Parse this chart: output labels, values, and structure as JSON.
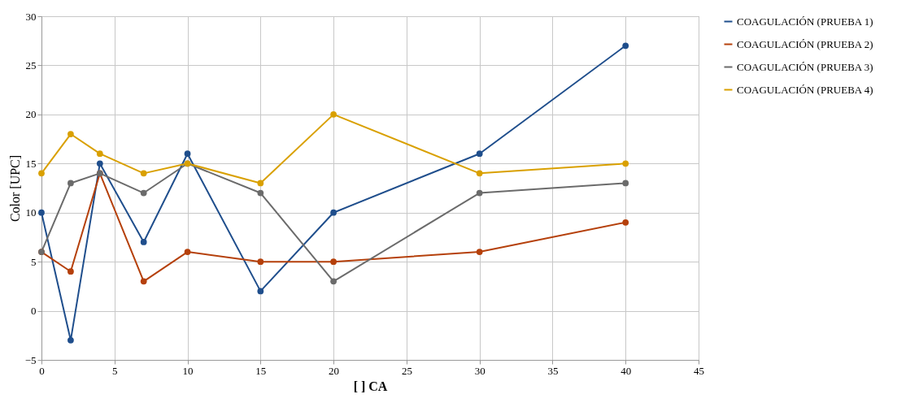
{
  "chart_data": {
    "type": "line",
    "xlabel": "[ ] CA",
    "ylabel": "Color [UPC]",
    "x": [
      0,
      2,
      4,
      7,
      10,
      15,
      20,
      30,
      40
    ],
    "series": [
      {
        "name": "COAGULACIÓN (PRUEBA 1)",
        "color": "#1f4e8c",
        "values": [
          10,
          -3,
          15,
          7,
          16,
          2,
          10,
          16,
          27
        ]
      },
      {
        "name": "COAGULACIÓN (PRUEBA 2)",
        "color": "#b5400b",
        "values": [
          6,
          4,
          14,
          3,
          6,
          5,
          5,
          6,
          9
        ]
      },
      {
        "name": "COAGULACIÓN (PRUEBA 3)",
        "color": "#6b6b6b",
        "values": [
          6,
          13,
          14,
          12,
          15,
          12,
          3,
          12,
          13
        ]
      },
      {
        "name": "COAGULACIÓN (PRUEBA 4)",
        "color": "#d9a000",
        "values": [
          14,
          18,
          16,
          14,
          15,
          13,
          20,
          14,
          15
        ]
      }
    ],
    "xlim": [
      0,
      45
    ],
    "xticks": [
      0,
      5,
      10,
      15,
      20,
      25,
      30,
      35,
      40,
      45
    ],
    "ylim": [
      -5,
      30
    ],
    "yticks": [
      -5,
      0,
      5,
      10,
      15,
      20,
      25,
      30
    ],
    "grid": true,
    "legend": "right",
    "marker": "circle",
    "line_style": "solid"
  }
}
